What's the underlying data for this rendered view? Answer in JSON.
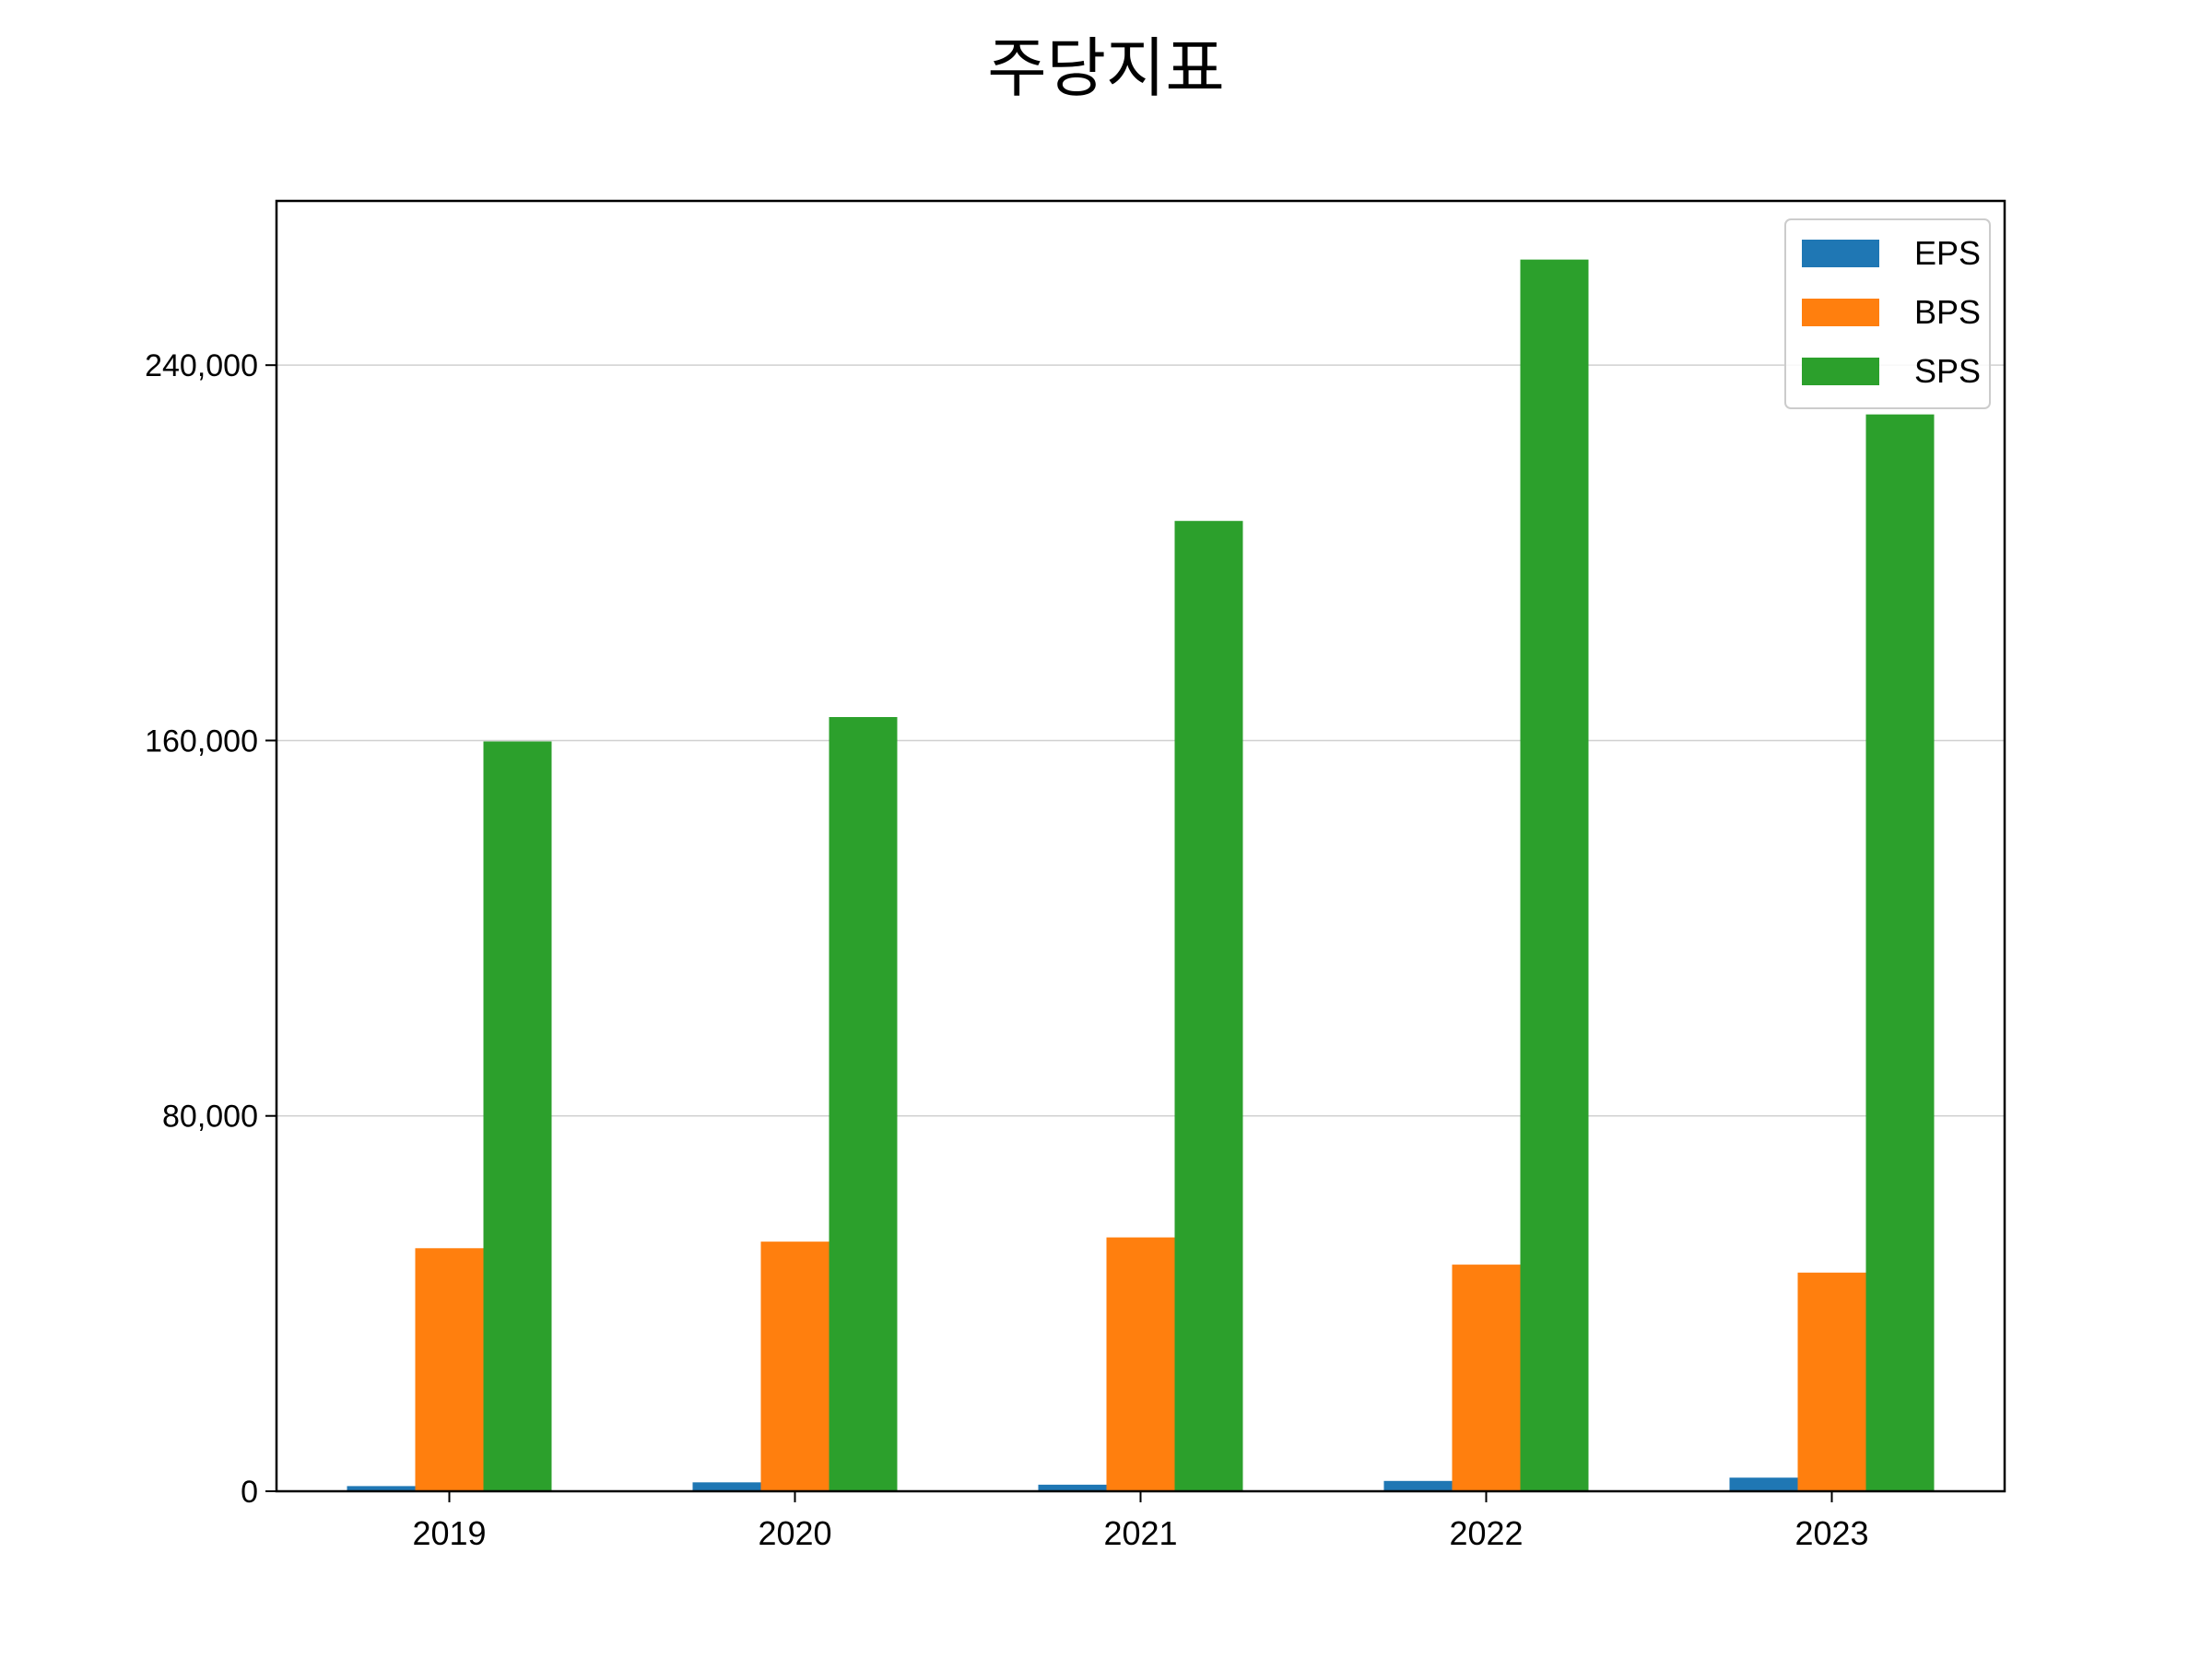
{
  "chart_data": {
    "type": "bar",
    "title": "주당지표",
    "xlabel": "",
    "ylabel": "",
    "categories": [
      "2019",
      "2020",
      "2021",
      "2022",
      "2023"
    ],
    "series": [
      {
        "name": "EPS",
        "color": "#1f77b4",
        "values": [
          1100,
          1900,
          1400,
          2200,
          2900
        ]
      },
      {
        "name": "BPS",
        "color": "#ff7f0e",
        "values": [
          51800,
          53200,
          54100,
          48300,
          46600
        ]
      },
      {
        "name": "SPS",
        "color": "#2ca02c",
        "values": [
          159800,
          165000,
          206800,
          262500,
          229500
        ]
      }
    ],
    "ylim": [
      0,
      275000
    ],
    "yticks": [
      0,
      80000,
      160000,
      240000
    ],
    "ytick_labels": [
      "0",
      "80,000",
      "160,000",
      "240,000"
    ],
    "grid": "y",
    "legend": {
      "position": "top-right"
    }
  }
}
